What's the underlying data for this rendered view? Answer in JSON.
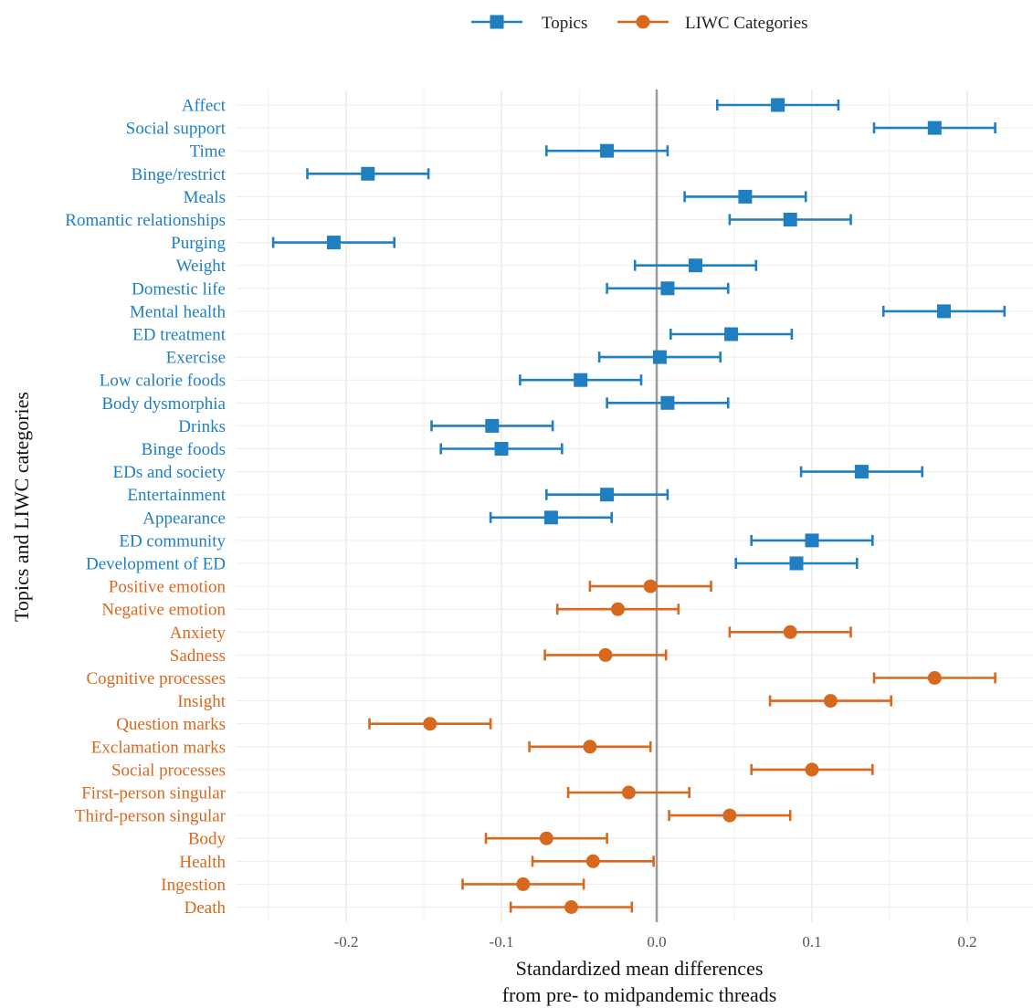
{
  "chart_data": {
    "type": "dot-errorbar",
    "xlabel_line1": "Standardized mean differences",
    "xlabel_line2": "from pre- to midpandemic threads",
    "ylabel": "Topics and LIWC categories",
    "xlim": [
      -0.25,
      0.24
    ],
    "x_ticks": [
      -0.2,
      -0.1,
      0.0,
      0.1,
      0.2
    ],
    "x_tick_labels": [
      "-0.2",
      "-0.1",
      "0.0",
      "0.1",
      "0.2"
    ],
    "reference_line": 0.0,
    "grid": true,
    "legend_position": "top",
    "colors": {
      "Topics": "#1f7fc0",
      "LIWC Categories": "#d8681e"
    },
    "series": [
      {
        "name": "Topics",
        "marker": "square",
        "points": [
          {
            "label": "Affect",
            "value": 0.078,
            "low": 0.039,
            "high": 0.117
          },
          {
            "label": "Social support",
            "value": 0.179,
            "low": 0.14,
            "high": 0.218
          },
          {
            "label": "Time",
            "value": -0.032,
            "low": -0.071,
            "high": 0.007
          },
          {
            "label": "Binge/restrict",
            "value": -0.186,
            "low": -0.225,
            "high": -0.147
          },
          {
            "label": "Meals",
            "value": 0.057,
            "low": 0.018,
            "high": 0.096
          },
          {
            "label": "Romantic relationships",
            "value": 0.086,
            "low": 0.047,
            "high": 0.125
          },
          {
            "label": "Purging",
            "value": -0.208,
            "low": -0.247,
            "high": -0.169
          },
          {
            "label": "Weight",
            "value": 0.025,
            "low": -0.014,
            "high": 0.064
          },
          {
            "label": "Domestic life",
            "value": 0.007,
            "low": -0.032,
            "high": 0.046
          },
          {
            "label": "Mental health",
            "value": 0.185,
            "low": 0.146,
            "high": 0.224
          },
          {
            "label": "ED treatment",
            "value": 0.048,
            "low": 0.009,
            "high": 0.087
          },
          {
            "label": "Exercise",
            "value": 0.002,
            "low": -0.037,
            "high": 0.041
          },
          {
            "label": "Low calorie foods",
            "value": -0.049,
            "low": -0.088,
            "high": -0.01
          },
          {
            "label": "Body dysmorphia",
            "value": 0.007,
            "low": -0.032,
            "high": 0.046
          },
          {
            "label": "Drinks",
            "value": -0.106,
            "low": -0.145,
            "high": -0.067
          },
          {
            "label": "Binge foods",
            "value": -0.1,
            "low": -0.139,
            "high": -0.061
          },
          {
            "label": "EDs and society",
            "value": 0.132,
            "low": 0.093,
            "high": 0.171
          },
          {
            "label": "Entertainment",
            "value": -0.032,
            "low": -0.071,
            "high": 0.007
          },
          {
            "label": "Appearance",
            "value": -0.068,
            "low": -0.107,
            "high": -0.029
          },
          {
            "label": "ED community",
            "value": 0.1,
            "low": 0.061,
            "high": 0.139
          },
          {
            "label": "Development of ED",
            "value": 0.09,
            "low": 0.051,
            "high": 0.129
          }
        ]
      },
      {
        "name": "LIWC Categories",
        "marker": "circle",
        "points": [
          {
            "label": "Positive emotion",
            "value": -0.004,
            "low": -0.043,
            "high": 0.035
          },
          {
            "label": "Negative emotion",
            "value": -0.025,
            "low": -0.064,
            "high": 0.014
          },
          {
            "label": "Anxiety",
            "value": 0.086,
            "low": 0.047,
            "high": 0.125
          },
          {
            "label": "Sadness",
            "value": -0.033,
            "low": -0.072,
            "high": 0.006
          },
          {
            "label": "Cognitive processes",
            "value": 0.179,
            "low": 0.14,
            "high": 0.218
          },
          {
            "label": "Insight",
            "value": 0.112,
            "low": 0.073,
            "high": 0.151
          },
          {
            "label": "Question marks",
            "value": -0.146,
            "low": -0.185,
            "high": -0.107
          },
          {
            "label": "Exclamation marks",
            "value": -0.043,
            "low": -0.082,
            "high": -0.004
          },
          {
            "label": "Social processes",
            "value": 0.1,
            "low": 0.061,
            "high": 0.139
          },
          {
            "label": "First-person singular",
            "value": -0.018,
            "low": -0.057,
            "high": 0.021
          },
          {
            "label": "Third-person singular",
            "value": 0.047,
            "low": 0.008,
            "high": 0.086
          },
          {
            "label": "Body",
            "value": -0.071,
            "low": -0.11,
            "high": -0.032
          },
          {
            "label": "Health",
            "value": -0.041,
            "low": -0.08,
            "high": -0.002
          },
          {
            "label": "Ingestion",
            "value": -0.086,
            "low": -0.125,
            "high": -0.047
          },
          {
            "label": "Death",
            "value": -0.055,
            "low": -0.094,
            "high": -0.016
          }
        ]
      }
    ]
  }
}
